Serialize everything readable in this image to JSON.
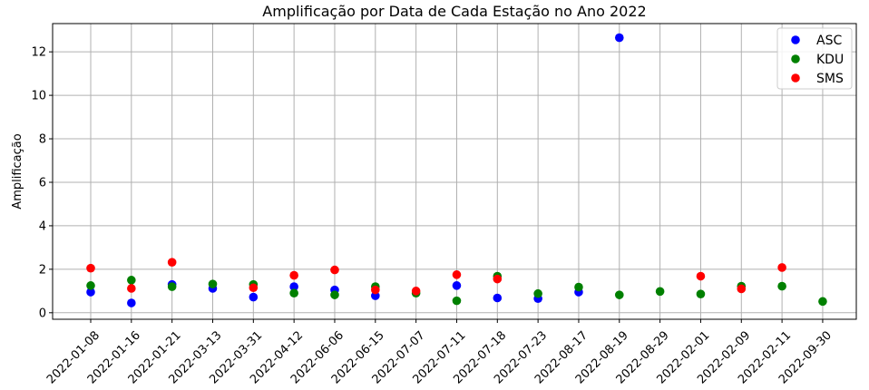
{
  "chart_data": {
    "type": "scatter",
    "title": "Amplificação por Data de Cada Estação no Ano 2022",
    "xlabel": "",
    "ylabel": "Amplificação",
    "ylim": [
      -0.3,
      13.3
    ],
    "yticks": [
      0,
      2,
      4,
      6,
      8,
      10,
      12
    ],
    "grid": true,
    "legend_position": "top-right",
    "categories": [
      "2022-01-08",
      "2022-01-16",
      "2022-01-21",
      "2022-03-13",
      "2022-03-31",
      "2022-04-12",
      "2022-06-06",
      "2022-06-15",
      "2022-07-07",
      "2022-07-11",
      "2022-07-18",
      "2022-07-23",
      "2022-08-17",
      "2022-08-19",
      "2022-08-29",
      "2022-02-01",
      "2022-02-09",
      "2022-02-11",
      "2022-09-30"
    ],
    "series": [
      {
        "name": "ASC",
        "color": "#0000ff",
        "points": [
          {
            "x": "2022-01-08",
            "y": 0.95
          },
          {
            "x": "2022-01-16",
            "y": 0.45
          },
          {
            "x": "2022-01-21",
            "y": 1.3
          },
          {
            "x": "2022-03-13",
            "y": 1.12
          },
          {
            "x": "2022-03-31",
            "y": 0.72
          },
          {
            "x": "2022-04-12",
            "y": 1.2
          },
          {
            "x": "2022-06-06",
            "y": 1.05
          },
          {
            "x": "2022-06-15",
            "y": 0.78
          },
          {
            "x": "2022-07-11",
            "y": 1.25
          },
          {
            "x": "2022-07-18",
            "y": 0.68
          },
          {
            "x": "2022-07-23",
            "y": 0.65
          },
          {
            "x": "2022-08-17",
            "y": 0.95
          },
          {
            "x": "2022-08-19",
            "y": 12.65
          }
        ]
      },
      {
        "name": "KDU",
        "color": "#008000",
        "points": [
          {
            "x": "2022-01-08",
            "y": 1.25
          },
          {
            "x": "2022-01-16",
            "y": 1.5
          },
          {
            "x": "2022-01-21",
            "y": 1.2
          },
          {
            "x": "2022-03-13",
            "y": 1.32
          },
          {
            "x": "2022-03-31",
            "y": 1.3
          },
          {
            "x": "2022-04-12",
            "y": 0.9
          },
          {
            "x": "2022-06-06",
            "y": 0.82
          },
          {
            "x": "2022-06-15",
            "y": 1.2
          },
          {
            "x": "2022-07-07",
            "y": 0.9
          },
          {
            "x": "2022-07-11",
            "y": 0.55
          },
          {
            "x": "2022-07-18",
            "y": 1.68
          },
          {
            "x": "2022-07-23",
            "y": 0.88
          },
          {
            "x": "2022-08-17",
            "y": 1.18
          },
          {
            "x": "2022-08-19",
            "y": 0.82
          },
          {
            "x": "2022-08-29",
            "y": 0.98
          },
          {
            "x": "2022-02-01",
            "y": 0.86
          },
          {
            "x": "2022-02-09",
            "y": 1.22
          },
          {
            "x": "2022-02-11",
            "y": 1.22
          },
          {
            "x": "2022-09-30",
            "y": 0.52
          }
        ]
      },
      {
        "name": "SMS",
        "color": "#ff0000",
        "points": [
          {
            "x": "2022-01-08",
            "y": 2.05
          },
          {
            "x": "2022-01-16",
            "y": 1.12
          },
          {
            "x": "2022-01-21",
            "y": 2.32
          },
          {
            "x": "2022-03-31",
            "y": 1.15
          },
          {
            "x": "2022-04-12",
            "y": 1.72
          },
          {
            "x": "2022-06-06",
            "y": 1.97
          },
          {
            "x": "2022-06-15",
            "y": 1.05
          },
          {
            "x": "2022-07-07",
            "y": 1.0
          },
          {
            "x": "2022-07-11",
            "y": 1.75
          },
          {
            "x": "2022-07-18",
            "y": 1.55
          },
          {
            "x": "2022-02-01",
            "y": 1.68
          },
          {
            "x": "2022-02-09",
            "y": 1.1
          },
          {
            "x": "2022-02-11",
            "y": 2.08
          }
        ]
      }
    ]
  }
}
